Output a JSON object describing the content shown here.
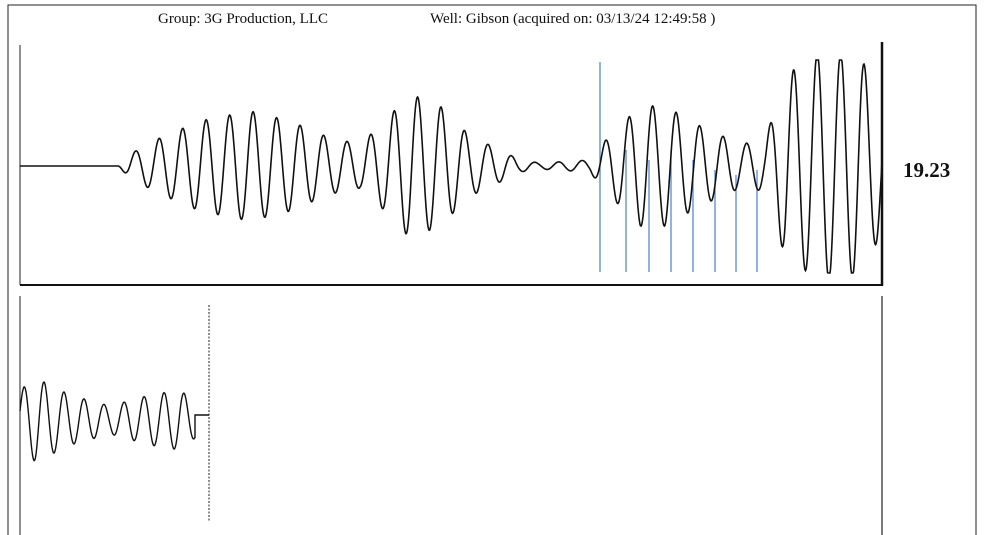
{
  "header": {
    "group": "Group: 3G Production, LLC",
    "well": "Well: Gibson (acquired on: 03/13/24 12:49:58 )"
  },
  "reading": "19.23"
}
